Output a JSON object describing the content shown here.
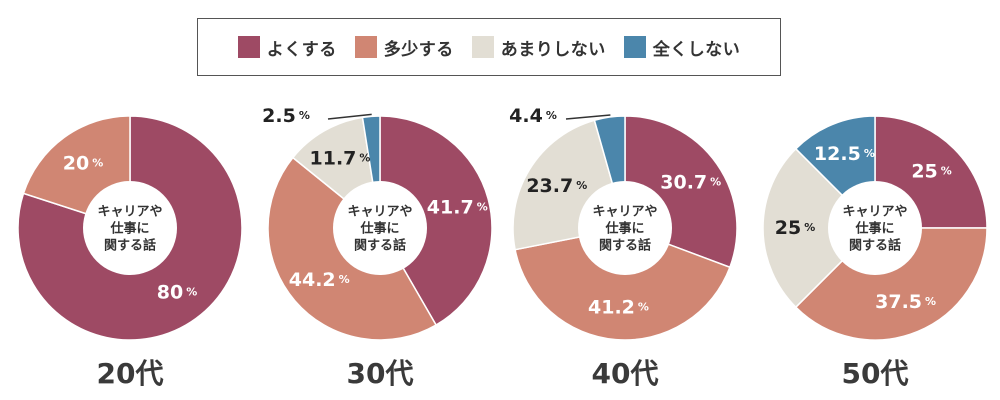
{
  "legend": [
    {
      "label": "よくする",
      "color": "#9e4a64"
    },
    {
      "label": "多少する",
      "color": "#d08673"
    },
    {
      "label": "あまりしない",
      "color": "#e2ded4"
    },
    {
      "label": "全くしない",
      "color": "#4b86ab"
    }
  ],
  "center_label": [
    "キャリアや",
    "仕事に",
    "関する話"
  ],
  "chart_data": [
    {
      "type": "pie",
      "title": "20代",
      "categories": [
        "よくする",
        "多少する",
        "あまりしない",
        "全くしない"
      ],
      "values": [
        80,
        20,
        0,
        0
      ],
      "labels": [
        "80",
        "20",
        "",
        ""
      ],
      "unit": "%"
    },
    {
      "type": "pie",
      "title": "30代",
      "categories": [
        "よくする",
        "多少する",
        "あまりしない",
        "全くしない"
      ],
      "values": [
        41.7,
        44.2,
        11.7,
        2.5
      ],
      "labels": [
        "41.7",
        "44.2",
        "11.7",
        "2.5"
      ],
      "unit": "%"
    },
    {
      "type": "pie",
      "title": "40代",
      "categories": [
        "よくする",
        "多少する",
        "あまりしない",
        "全くしない"
      ],
      "values": [
        30.7,
        41.2,
        23.7,
        4.4
      ],
      "labels": [
        "30.7",
        "41.2",
        "23.7",
        "4.4"
      ],
      "unit": "%"
    },
    {
      "type": "pie",
      "title": "50代",
      "categories": [
        "よくする",
        "多少する",
        "あまりしない",
        "全くしない"
      ],
      "values": [
        25,
        37.5,
        25,
        12.5
      ],
      "labels": [
        "25",
        "37.5",
        "25",
        "12.5"
      ],
      "unit": "%"
    }
  ]
}
